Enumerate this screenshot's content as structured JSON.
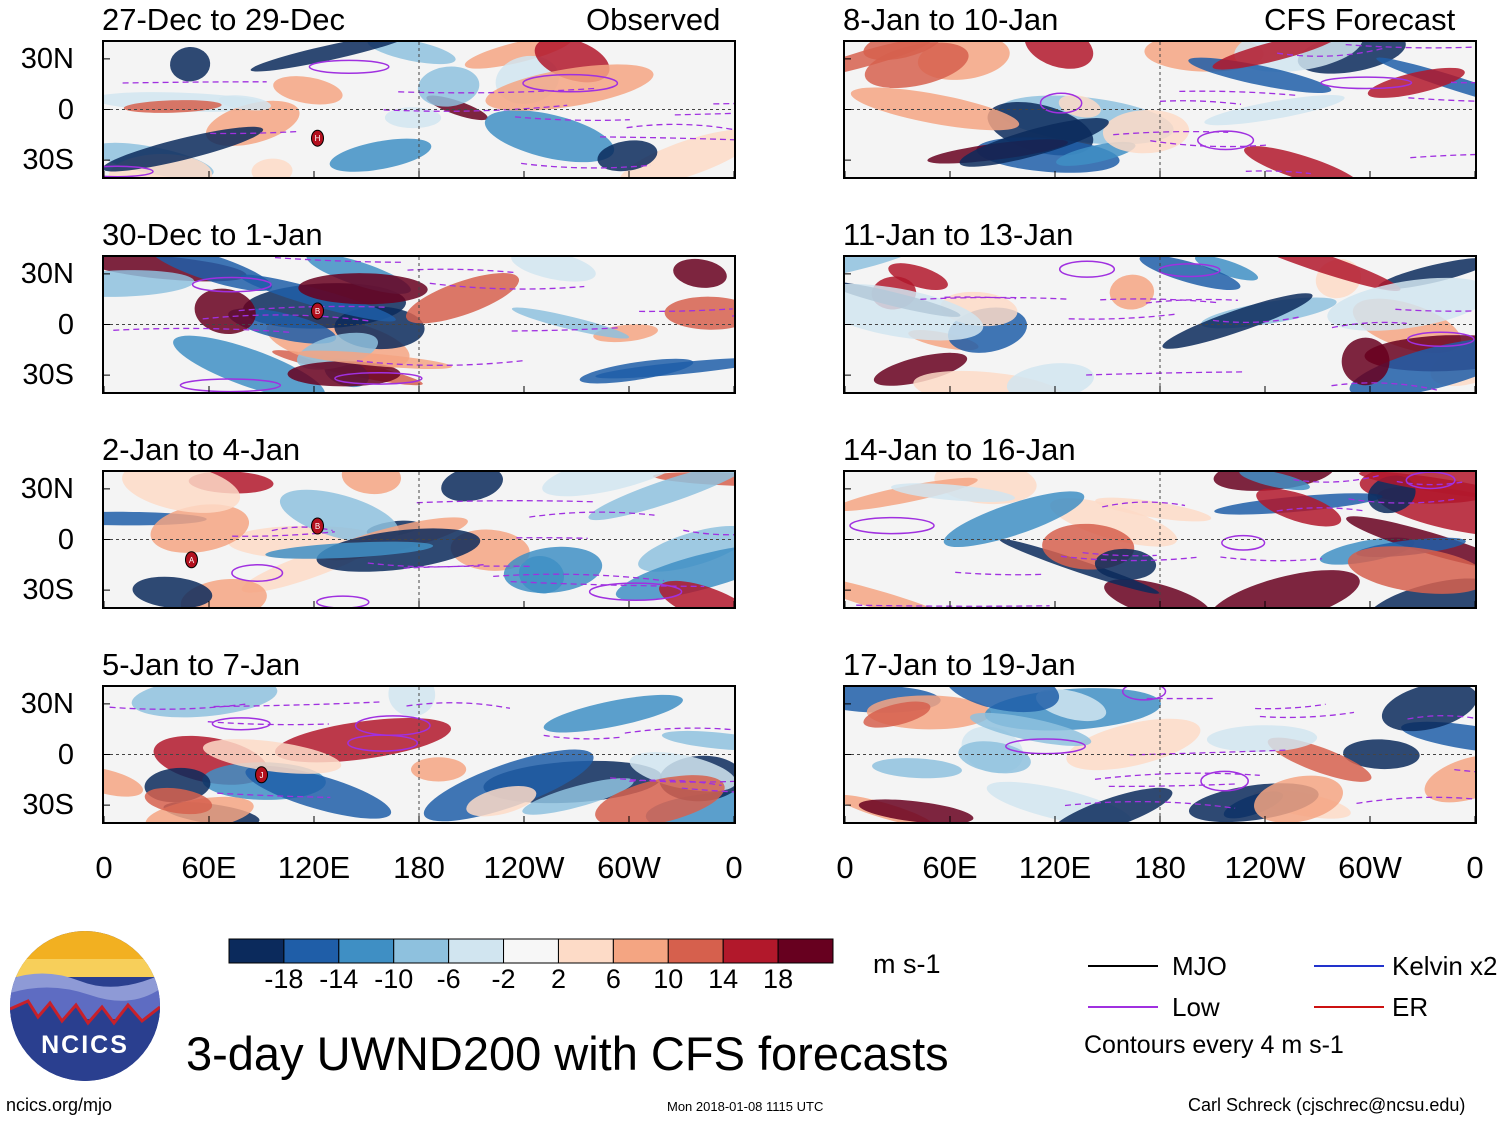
{
  "chart_data": {
    "type": "heatmap",
    "title": "3-day UWND200 with CFS forecasts",
    "variable": "200-hPa zonal wind",
    "units": "m s-1",
    "contour_note": "Contours every 4 m s-1",
    "columns": [
      {
        "label_left": "",
        "label_right": "Observed"
      },
      {
        "label_left": "",
        "label_right": "CFS Forecast"
      }
    ],
    "panels": [
      {
        "period": "27-Dec to 29-Dec",
        "column": "Observed",
        "row": 0,
        "markers": [
          {
            "label": "H",
            "lon": 122,
            "lat": -17
          }
        ]
      },
      {
        "period": "30-Dec to 1-Jan",
        "column": "Observed",
        "row": 1,
        "markers": [
          {
            "label": "B",
            "lon": 122,
            "lat": 8
          }
        ]
      },
      {
        "period": "2-Jan to 4-Jan",
        "column": "Observed",
        "row": 2,
        "markers": [
          {
            "label": "B",
            "lon": 122,
            "lat": 8
          },
          {
            "label": "A",
            "lon": 50,
            "lat": -12
          }
        ]
      },
      {
        "period": "5-Jan to 7-Jan",
        "column": "Observed",
        "row": 3,
        "markers": [
          {
            "label": "J",
            "lon": 90,
            "lat": -12
          }
        ]
      },
      {
        "period": "8-Jan to 10-Jan",
        "column": "CFS Forecast",
        "row": 0,
        "markers": []
      },
      {
        "period": "11-Jan to 13-Jan",
        "column": "CFS Forecast",
        "row": 1,
        "markers": []
      },
      {
        "period": "14-Jan to 16-Jan",
        "column": "CFS Forecast",
        "row": 2,
        "markers": []
      },
      {
        "period": "17-Jan to 19-Jan",
        "column": "CFS Forecast",
        "row": 3,
        "markers": []
      }
    ],
    "y_ticks": [
      "30N",
      "0",
      "30S"
    ],
    "y_tick_values": [
      30,
      0,
      -30
    ],
    "ylim": [
      -40,
      40
    ],
    "x_ticks": [
      "0",
      "60E",
      "120E",
      "180",
      "120W",
      "60W",
      "0"
    ],
    "x_tick_values": [
      0,
      60,
      120,
      180,
      240,
      300,
      360
    ],
    "xlim": [
      0,
      360
    ],
    "colorbar": {
      "ticks": [
        "-18",
        "-14",
        "-10",
        "-6",
        "-2",
        "2",
        "6",
        "10",
        "14",
        "18"
      ],
      "tick_values": [
        -18,
        -14,
        -10,
        -6,
        -2,
        2,
        6,
        10,
        14,
        18
      ],
      "colors": [
        "#0b2a5c",
        "#1f5ea8",
        "#3f8fc4",
        "#8ec1de",
        "#d1e5f0",
        "#f7f7f7",
        "#fddbc7",
        "#f4a582",
        "#d6604d",
        "#b2182b",
        "#67001f"
      ]
    },
    "legend": [
      {
        "label": "MJO",
        "color": "#000000"
      },
      {
        "label": "Kelvin x2",
        "color": "#2233cc"
      },
      {
        "label": "Low",
        "color": "#a030e0"
      },
      {
        "label": "ER",
        "color": "#cc1111"
      }
    ]
  },
  "footer": {
    "logo_text": "NCICS",
    "url": "ncics.org/mjo",
    "timestamp": "Mon 2018-01-08 1115 UTC",
    "author": "Carl Schreck (cjschrec@ncsu.edu)"
  }
}
